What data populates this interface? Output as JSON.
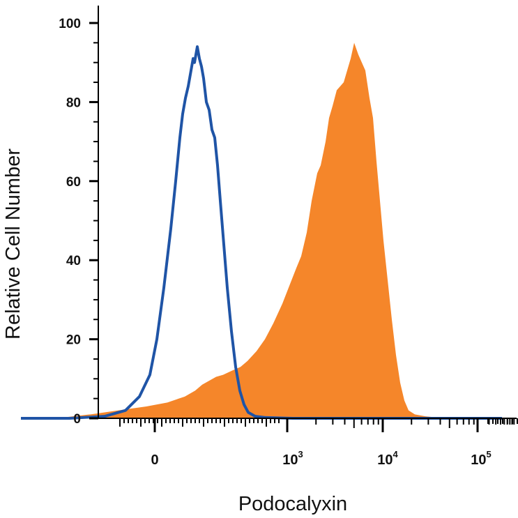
{
  "chart_data": {
    "type": "area",
    "title": "",
    "xlabel": "Podocalyxin",
    "ylabel": "Relative Cell Number",
    "xscale": "biexponential",
    "x_ticks": [
      {
        "base": "0",
        "exp": ""
      },
      {
        "base": "10",
        "exp": "3"
      },
      {
        "base": "10",
        "exp": "4"
      },
      {
        "base": "10",
        "exp": "5"
      }
    ],
    "ylim": [
      0,
      100
    ],
    "y_ticks": [
      "0",
      "20",
      "40",
      "60",
      "80",
      "100"
    ],
    "grid": false,
    "series": [
      {
        "style": "filled",
        "color": "#F5862A",
        "points": [
          [
            30,
            0
          ],
          [
            80,
            0
          ],
          [
            130,
            1
          ],
          [
            170,
            2
          ],
          [
            210,
            3
          ],
          [
            240,
            4
          ],
          [
            265,
            5.5
          ],
          [
            280,
            7
          ],
          [
            290,
            8.5
          ],
          [
            300,
            9.5
          ],
          [
            310,
            10.5
          ],
          [
            320,
            11
          ],
          [
            332,
            12
          ],
          [
            345,
            13
          ],
          [
            355,
            14.5
          ],
          [
            368,
            17
          ],
          [
            380,
            20
          ],
          [
            392,
            24
          ],
          [
            405,
            29
          ],
          [
            415,
            33.5
          ],
          [
            425,
            38
          ],
          [
            432,
            41
          ],
          [
            440,
            47
          ],
          [
            447,
            55
          ],
          [
            455,
            62
          ],
          [
            460,
            64
          ],
          [
            467,
            70
          ],
          [
            472,
            76
          ],
          [
            477,
            79
          ],
          [
            483,
            83
          ],
          [
            488,
            84
          ],
          [
            493,
            85
          ],
          [
            498,
            88
          ],
          [
            503,
            91
          ],
          [
            508,
            95
          ],
          [
            514,
            92
          ],
          [
            519,
            90
          ],
          [
            524,
            88
          ],
          [
            530,
            81
          ],
          [
            535,
            76
          ],
          [
            540,
            65
          ],
          [
            545,
            55
          ],
          [
            550,
            45
          ],
          [
            556,
            35
          ],
          [
            562,
            25
          ],
          [
            568,
            16
          ],
          [
            574,
            9
          ],
          [
            580,
            4.5
          ],
          [
            586,
            2
          ],
          [
            595,
            1
          ],
          [
            610,
            0.5
          ],
          [
            640,
            0
          ],
          [
            720,
            0
          ]
        ]
      },
      {
        "style": "outline",
        "color": "#1F54A6",
        "points": [
          [
            30,
            0
          ],
          [
            100,
            0
          ],
          [
            150,
            0.5
          ],
          [
            180,
            2
          ],
          [
            200,
            5.5
          ],
          [
            215,
            11
          ],
          [
            225,
            20
          ],
          [
            235,
            33
          ],
          [
            245,
            48
          ],
          [
            252,
            60
          ],
          [
            258,
            71
          ],
          [
            262,
            77
          ],
          [
            266,
            81
          ],
          [
            270,
            84
          ],
          [
            274,
            88
          ],
          [
            277,
            91
          ],
          [
            279,
            90
          ],
          [
            281,
            92
          ],
          [
            283,
            94
          ],
          [
            286,
            91
          ],
          [
            289,
            89
          ],
          [
            292,
            86
          ],
          [
            296,
            80
          ],
          [
            300,
            78
          ],
          [
            304,
            73
          ],
          [
            308,
            71
          ],
          [
            312,
            64
          ],
          [
            316,
            55
          ],
          [
            321,
            44
          ],
          [
            326,
            33
          ],
          [
            332,
            22
          ],
          [
            338,
            13
          ],
          [
            344,
            7
          ],
          [
            350,
            3.5
          ],
          [
            356,
            1.5
          ],
          [
            366,
            0.5
          ],
          [
            380,
            0.2
          ],
          [
            420,
            0
          ],
          [
            720,
            0
          ]
        ]
      }
    ]
  }
}
